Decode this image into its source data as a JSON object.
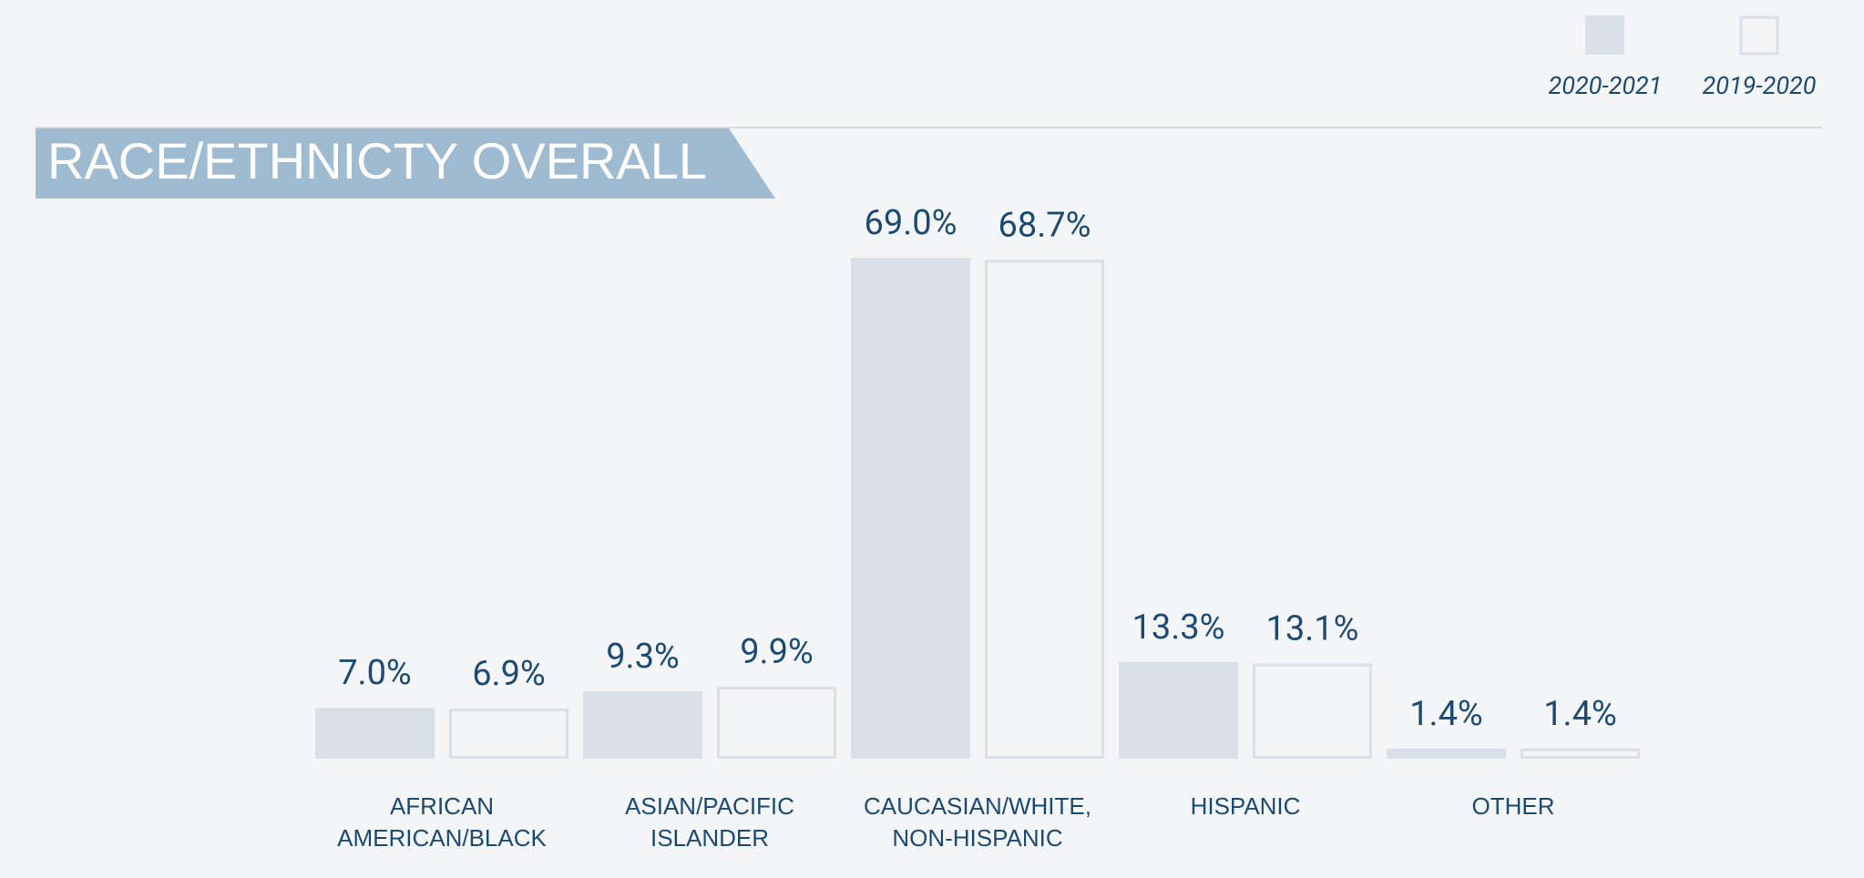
{
  "chart_data": {
    "type": "bar",
    "title": "RACE/ETHNICTY OVERALL",
    "categories": [
      "AFRICAN AMERICAN/BLACK",
      "ASIAN/PACIFIC ISLANDER",
      "CAUCASIAN/WHITE, NON-HISPANIC",
      "HISPANIC",
      "OTHER"
    ],
    "series": [
      {
        "name": "2020-2021",
        "color": "#d9e0e7",
        "style": "filled",
        "values": [
          7.0,
          9.3,
          69.0,
          13.3,
          1.4
        ],
        "value_labels": [
          "7.0%",
          "9.3%",
          "69.0%",
          "13.3%",
          "1.4%"
        ]
      },
      {
        "name": "2019-2020",
        "color": "#d9e0e7",
        "style": "outline",
        "values": [
          6.9,
          9.9,
          68.7,
          13.1,
          1.4
        ],
        "value_labels": [
          "6.9%",
          "9.9%",
          "68.7%",
          "13.1%",
          "1.4%"
        ]
      }
    ],
    "legend": "top-right"
  }
}
